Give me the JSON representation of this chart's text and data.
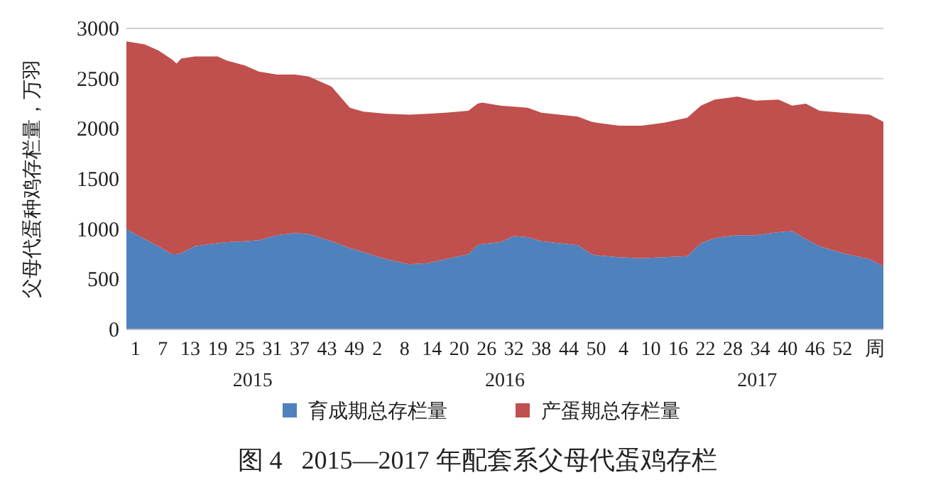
{
  "chart_data": {
    "type": "area",
    "stacked": true,
    "title": "图 4   2015—2017 年配套系父母代蛋鸡存栏",
    "ylabel": "父母代蛋种鸡存栏量，万羽",
    "xlabel": "周",
    "x": [
      "2014-12-18",
      "2015-01-15",
      "2015-02-05",
      "2015-02-26",
      "2015-03-05",
      "2015-03-12",
      "2015-04-02",
      "2015-05-07",
      "2015-05-21",
      "2015-06-18",
      "2015-07-09",
      "2015-08-06",
      "2015-09-03",
      "2015-09-24",
      "2015-10-29",
      "2015-11-26",
      "2015-12-17",
      "2016-01-21",
      "2016-02-25",
      "2016-03-24",
      "2016-04-21",
      "2016-05-26",
      "2016-06-09",
      "2016-06-16",
      "2016-07-14",
      "2016-08-04",
      "2016-08-25",
      "2016-09-15",
      "2016-10-13",
      "2016-11-10",
      "2016-12-01",
      "2016-12-08",
      "2017-01-12",
      "2017-02-16",
      "2017-03-23",
      "2017-04-27",
      "2017-05-18",
      "2017-06-08",
      "2017-07-13",
      "2017-08-10",
      "2017-09-14",
      "2017-10-05",
      "2017-10-26",
      "2017-11-16",
      "2017-12-21",
      "2018-02-01",
      "2018-02-22"
    ],
    "series": [
      {
        "name": "育成期总存栏量",
        "color": "#4f81bd",
        "values": [
          1000,
          900,
          830,
          750,
          750,
          760,
          830,
          860,
          870,
          880,
          890,
          940,
          960,
          950,
          880,
          810,
          770,
          700,
          650,
          660,
          700,
          750,
          840,
          850,
          870,
          930,
          920,
          880,
          860,
          840,
          750,
          740,
          720,
          710,
          720,
          730,
          860,
          910,
          940,
          940,
          970,
          980,
          900,
          830,
          760,
          700,
          630
        ]
      },
      {
        "name": "产蛋期总存栏量",
        "color": "#c0504d",
        "values": [
          1870,
          1940,
          1950,
          1940,
          1900,
          1940,
          1890,
          1860,
          1810,
          1750,
          1680,
          1600,
          1580,
          1570,
          1540,
          1400,
          1400,
          1450,
          1490,
          1490,
          1460,
          1430,
          1410,
          1410,
          1360,
          1290,
          1290,
          1280,
          1280,
          1280,
          1320,
          1320,
          1310,
          1320,
          1340,
          1380,
          1370,
          1380,
          1380,
          1340,
          1320,
          1250,
          1350,
          1350,
          1400,
          1440,
          1440
        ]
      }
    ],
    "xlim": [
      "2014-12-18",
      "2018-02-22"
    ],
    "ylim": [
      0,
      3000
    ],
    "yticks": [
      0,
      500,
      1000,
      1500,
      2000,
      2500,
      3000
    ],
    "xticks": [
      {
        "value": "2015-01-01",
        "label": "1"
      },
      {
        "value": "2015-02-12",
        "label": "7"
      },
      {
        "value": "2015-03-26",
        "label": "13"
      },
      {
        "value": "2015-05-07",
        "label": "19"
      },
      {
        "value": "2015-06-18",
        "label": "25"
      },
      {
        "value": "2015-07-30",
        "label": "31"
      },
      {
        "value": "2015-09-10",
        "label": "37"
      },
      {
        "value": "2015-10-22",
        "label": "43"
      },
      {
        "value": "2015-12-03",
        "label": "49"
      },
      {
        "value": "2016-01-07",
        "label": "2"
      },
      {
        "value": "2016-02-18",
        "label": "8"
      },
      {
        "value": "2016-03-31",
        "label": "14"
      },
      {
        "value": "2016-05-12",
        "label": "20"
      },
      {
        "value": "2016-06-23",
        "label": "26"
      },
      {
        "value": "2016-08-04",
        "label": "32"
      },
      {
        "value": "2016-09-15",
        "label": "38"
      },
      {
        "value": "2016-10-27",
        "label": "44"
      },
      {
        "value": "2016-12-08",
        "label": "50"
      },
      {
        "value": "2017-01-19",
        "label": "4"
      },
      {
        "value": "2017-03-02",
        "label": "10"
      },
      {
        "value": "2017-04-13",
        "label": "16"
      },
      {
        "value": "2017-05-25",
        "label": "22"
      },
      {
        "value": "2017-07-06",
        "label": "28"
      },
      {
        "value": "2017-08-17",
        "label": "34"
      },
      {
        "value": "2017-09-28",
        "label": "40"
      },
      {
        "value": "2017-11-09",
        "label": "46"
      },
      {
        "value": "2017-12-21",
        "label": "52"
      }
    ],
    "annotations": [
      "2015",
      "2016",
      "2017"
    ],
    "grid": "y",
    "legend": "bottom"
  }
}
